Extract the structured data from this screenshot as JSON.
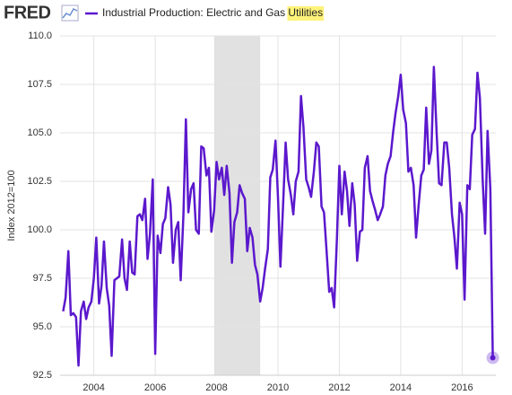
{
  "chart_data": {
    "type": "line",
    "logo": "FRED",
    "ylabel": "Index 2012=100",
    "xlim": [
      2002.9,
      2017.1
    ],
    "ylim": [
      92.5,
      110
    ],
    "xticks": [
      2004,
      2006,
      2008,
      2010,
      2012,
      2014,
      2016
    ],
    "yticks": [
      {
        "value": 92.5,
        "label": "92.5"
      },
      {
        "value": 95,
        "label": "95.0"
      },
      {
        "value": 97.5,
        "label": "97.5"
      },
      {
        "value": 100,
        "label": "100.0"
      },
      {
        "value": 102.5,
        "label": "102.5"
      },
      {
        "value": 105,
        "label": "105.0"
      },
      {
        "value": 107.5,
        "label": "107.5"
      },
      {
        "value": 110,
        "label": "110.0"
      }
    ],
    "grid": true,
    "shaded_ranges": [
      [
        2007.92,
        2009.42
      ]
    ],
    "x": [
      2003,
      2003.08,
      2003.17,
      2003.25,
      2003.33,
      2003.42,
      2003.5,
      2003.58,
      2003.67,
      2003.75,
      2003.83,
      2003.92,
      2004,
      2004.08,
      2004.17,
      2004.25,
      2004.33,
      2004.42,
      2004.5,
      2004.58,
      2004.67,
      2004.75,
      2004.83,
      2004.92,
      2005,
      2005.08,
      2005.17,
      2005.25,
      2005.33,
      2005.42,
      2005.5,
      2005.58,
      2005.67,
      2005.75,
      2005.83,
      2005.92,
      2006,
      2006.08,
      2006.17,
      2006.25,
      2006.33,
      2006.42,
      2006.5,
      2006.58,
      2006.67,
      2006.75,
      2006.83,
      2006.92,
      2007,
      2007.08,
      2007.17,
      2007.25,
      2007.33,
      2007.42,
      2007.5,
      2007.58,
      2007.67,
      2007.75,
      2007.83,
      2007.92,
      2008,
      2008.08,
      2008.17,
      2008.25,
      2008.33,
      2008.42,
      2008.5,
      2008.58,
      2008.67,
      2008.75,
      2008.83,
      2008.92,
      2009,
      2009.08,
      2009.17,
      2009.25,
      2009.33,
      2009.42,
      2009.5,
      2009.58,
      2009.67,
      2009.75,
      2009.83,
      2009.92,
      2010,
      2010.08,
      2010.17,
      2010.25,
      2010.33,
      2010.42,
      2010.5,
      2010.58,
      2010.67,
      2010.75,
      2010.83,
      2010.92,
      2011,
      2011.08,
      2011.17,
      2011.25,
      2011.33,
      2011.42,
      2011.5,
      2011.58,
      2011.67,
      2011.75,
      2011.83,
      2011.92,
      2012,
      2012.08,
      2012.17,
      2012.25,
      2012.33,
      2012.42,
      2012.5,
      2012.58,
      2012.67,
      2012.75,
      2012.83,
      2012.92,
      2013,
      2013.08,
      2013.17,
      2013.25,
      2013.33,
      2013.42,
      2013.5,
      2013.58,
      2013.67,
      2013.75,
      2013.83,
      2013.92,
      2014,
      2014.08,
      2014.17,
      2014.25,
      2014.33,
      2014.42,
      2014.5,
      2014.58,
      2014.67,
      2014.75,
      2014.83,
      2014.92,
      2015,
      2015.08,
      2015.17,
      2015.25,
      2015.33,
      2015.42,
      2015.5,
      2015.58,
      2015.67,
      2015.75,
      2015.83,
      2015.92,
      2016,
      2016.08,
      2016.17,
      2016.25,
      2016.33,
      2016.42,
      2016.5,
      2016.58,
      2016.67,
      2016.75,
      2016.83,
      2016.92,
      2017
    ],
    "series": [
      {
        "name": "Industrial Production: Electric and Gas Utilities",
        "color": "#5b18cd",
        "values": [
          95.8,
          96.5,
          98.9,
          95.6,
          95.7,
          95.5,
          93.0,
          95.8,
          96.3,
          95.4,
          96.0,
          96.3,
          97.5,
          99.6,
          96.2,
          97.1,
          99.4,
          97.0,
          96.1,
          93.5,
          97.4,
          97.5,
          97.6,
          99.5,
          97.5,
          96.9,
          99.4,
          97.8,
          97.7,
          100.7,
          100.8,
          100.5,
          101.6,
          98.5,
          99.8,
          102.6,
          93.6,
          99.7,
          98.8,
          100.3,
          100.6,
          102.2,
          101.3,
          98.3,
          100.0,
          100.4,
          97.4,
          100.8,
          105.7,
          100.9,
          102.1,
          102.4,
          100.0,
          99.8,
          104.3,
          104.2,
          102.8,
          103.2,
          99.9,
          101.0,
          103.5,
          102.6,
          103.2,
          101.8,
          103.3,
          101.9,
          98.3,
          100.4,
          100.9,
          102.3,
          101.9,
          101.6,
          98.9,
          100.1,
          99.6,
          98.2,
          97.7,
          96.3,
          97.0,
          98.0,
          99.0,
          102.7,
          103.1,
          104.6,
          101.7,
          98.1,
          101.4,
          104.5,
          102.6,
          101.8,
          100.8,
          102.5,
          103.0,
          106.9,
          105.3,
          102.6,
          102.2,
          101.7,
          103.0,
          104.5,
          104.3,
          101.2,
          100.9,
          99.0,
          96.8,
          97.0,
          96.0,
          99.5,
          103.3,
          100.8,
          103.0,
          102.0,
          100.2,
          102.4,
          101.3,
          98.4,
          99.9,
          100.0,
          103.2,
          103.8,
          102.0,
          101.5,
          101.0,
          100.5,
          100.8,
          101.2,
          102.8,
          103.4,
          103.8,
          105.0,
          106.0,
          106.9,
          108.0,
          106.2,
          105.5,
          103.0,
          103.2,
          102.3,
          99.6,
          101.2,
          102.8,
          103.1,
          106.3,
          103.4,
          104.1,
          108.4,
          105.0,
          102.4,
          102.3,
          104.5,
          104.5,
          103.2,
          100.8,
          99.6,
          98.0,
          101.4,
          100.8,
          96.4,
          102.3,
          102.1,
          104.9,
          105.2,
          108.1,
          106.8,
          102.6,
          99.8,
          105.1,
          102.1,
          93.4
        ]
      }
    ]
  }
}
